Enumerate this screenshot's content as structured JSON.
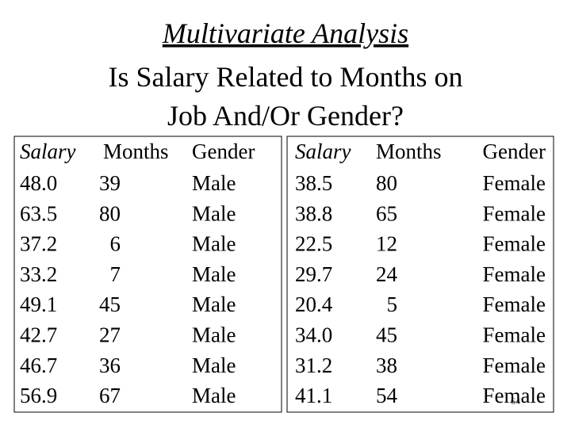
{
  "header": {
    "title": "Multivariate Analysis",
    "subtitle_lines": [
      "Is Salary Related to Months on",
      "Job And/Or Gender?"
    ]
  },
  "tables": [
    {
      "columns": [
        "Salary",
        "Months",
        "Gender"
      ],
      "rows": [
        [
          "48.0",
          "39",
          "Male"
        ],
        [
          "63.5",
          "80",
          "Male"
        ],
        [
          "37.2",
          "6",
          "Male"
        ],
        [
          "33.2",
          "7",
          "Male"
        ],
        [
          "49.1",
          "45",
          "Male"
        ],
        [
          "42.7",
          "27",
          "Male"
        ],
        [
          "46.7",
          "36",
          "Male"
        ],
        [
          "56.9",
          "67",
          "Male"
        ]
      ]
    },
    {
      "columns": [
        "Salary",
        "Months",
        "Gender"
      ],
      "rows": [
        [
          "38.5",
          "80",
          "Female"
        ],
        [
          "38.8",
          "65",
          "Female"
        ],
        [
          "22.5",
          "12",
          "Female"
        ],
        [
          "29.7",
          "24",
          "Female"
        ],
        [
          "20.4",
          "5",
          "Female"
        ],
        [
          "34.0",
          "45",
          "Female"
        ],
        [
          "31.2",
          "38",
          "Female"
        ],
        [
          "41.1",
          "54",
          "Female"
        ]
      ]
    }
  ],
  "page_number": "64"
}
